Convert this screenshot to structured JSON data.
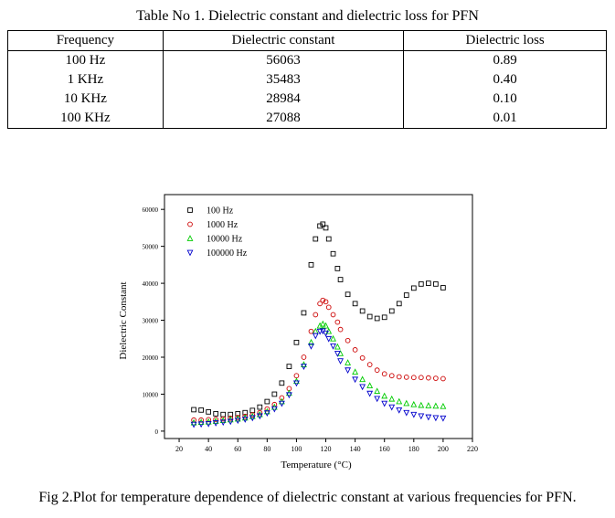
{
  "table": {
    "caption": "Table No 1. Dielectric constant and dielectric loss for PFN",
    "headers": [
      "Frequency",
      "Dielectric constant",
      "Dielectric loss"
    ],
    "rows": [
      [
        "100 Hz",
        "56063",
        "0.89"
      ],
      [
        "1 KHz",
        "35483",
        "0.40"
      ],
      [
        "10 KHz",
        "28984",
        "0.10"
      ],
      [
        "100 KHz",
        "27088",
        "0.01"
      ]
    ]
  },
  "figure": {
    "caption": "Fig 2.Plot for temperature dependence of dielectric constant at various frequencies for PFN."
  },
  "chart_data": {
    "type": "scatter",
    "xlabel": "Temperature (°C)",
    "ylabel": "Dielectric Constant",
    "xlim": [
      10,
      220
    ],
    "ylim": [
      -2000,
      64000
    ],
    "xticks": [
      20,
      40,
      60,
      80,
      100,
      120,
      140,
      160,
      180,
      200,
      220
    ],
    "yticks": [
      0,
      10000,
      20000,
      30000,
      40000,
      50000,
      60000
    ],
    "legend_position": "top-left",
    "series": [
      {
        "name": "100 Hz",
        "marker": "square",
        "color": "#000000",
        "x": [
          30,
          35,
          40,
          45,
          50,
          55,
          60,
          65,
          70,
          75,
          80,
          85,
          90,
          95,
          100,
          105,
          110,
          113,
          116,
          118,
          120,
          122,
          125,
          128,
          130,
          135,
          140,
          145,
          150,
          155,
          160,
          165,
          170,
          175,
          180,
          185,
          190,
          195,
          200
        ],
        "y": [
          5800,
          5700,
          5200,
          4700,
          4500,
          4500,
          4700,
          5000,
          5600,
          6500,
          8000,
          10000,
          13000,
          17500,
          24000,
          32000,
          45000,
          52000,
          55500,
          56000,
          55000,
          52000,
          48000,
          44000,
          41000,
          37000,
          34500,
          32500,
          31000,
          30500,
          30800,
          32500,
          34500,
          36800,
          38700,
          39800,
          40000,
          39800,
          38800
        ]
      },
      {
        "name": "1000 Hz",
        "marker": "circle",
        "color": "#cc0000",
        "x": [
          30,
          35,
          40,
          45,
          50,
          55,
          60,
          65,
          70,
          75,
          80,
          85,
          90,
          95,
          100,
          105,
          110,
          113,
          116,
          118,
          120,
          122,
          125,
          128,
          130,
          135,
          140,
          145,
          150,
          155,
          160,
          165,
          170,
          175,
          180,
          185,
          190,
          195,
          200
        ],
        "y": [
          3000,
          3000,
          3100,
          3200,
          3300,
          3500,
          3700,
          4000,
          4400,
          5000,
          6000,
          7200,
          9000,
          11500,
          15000,
          20000,
          27000,
          31500,
          34500,
          35400,
          35000,
          33500,
          31500,
          29500,
          27500,
          24500,
          22000,
          19800,
          18000,
          16500,
          15500,
          15000,
          14700,
          14600,
          14500,
          14500,
          14400,
          14300,
          14200
        ]
      },
      {
        "name": "10000 Hz",
        "marker": "triangle-up",
        "color": "#00cc00",
        "x": [
          30,
          35,
          40,
          45,
          50,
          55,
          60,
          65,
          70,
          75,
          80,
          85,
          90,
          95,
          100,
          105,
          110,
          113,
          116,
          118,
          120,
          122,
          125,
          128,
          130,
          135,
          140,
          145,
          150,
          155,
          160,
          165,
          170,
          175,
          180,
          185,
          190,
          195,
          200
        ],
        "y": [
          2300,
          2400,
          2500,
          2700,
          2900,
          3100,
          3300,
          3600,
          4000,
          4500,
          5300,
          6500,
          8000,
          10300,
          13500,
          18000,
          24000,
          27000,
          28500,
          29000,
          28500,
          27000,
          25000,
          22800,
          21000,
          18500,
          16000,
          14000,
          12300,
          10800,
          9500,
          8700,
          8000,
          7500,
          7200,
          7000,
          6900,
          6800,
          6700
        ]
      },
      {
        "name": "100000 Hz",
        "marker": "triangle-down",
        "color": "#0000cc",
        "x": [
          30,
          35,
          40,
          45,
          50,
          55,
          60,
          65,
          70,
          75,
          80,
          85,
          90,
          95,
          100,
          105,
          110,
          113,
          116,
          118,
          120,
          122,
          125,
          128,
          130,
          135,
          140,
          145,
          150,
          155,
          160,
          165,
          170,
          175,
          180,
          185,
          190,
          195,
          200
        ],
        "y": [
          1800,
          1900,
          2000,
          2200,
          2400,
          2600,
          2900,
          3200,
          3600,
          4100,
          4900,
          6000,
          7500,
          9800,
          13000,
          17500,
          23000,
          25800,
          27000,
          27100,
          26500,
          25000,
          23000,
          21000,
          19000,
          16500,
          14000,
          12000,
          10200,
          8800,
          7500,
          6500,
          5700,
          5000,
          4500,
          4100,
          3800,
          3600,
          3500
        ]
      }
    ]
  }
}
